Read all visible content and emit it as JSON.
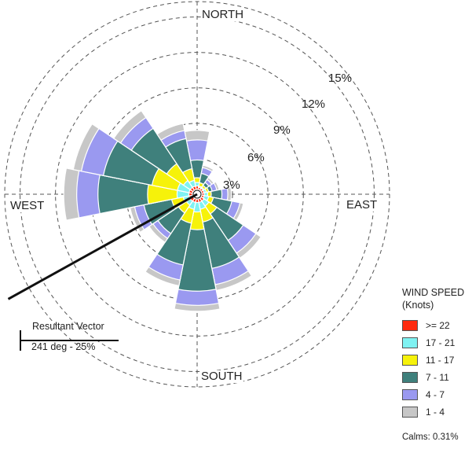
{
  "chart_data": {
    "type": "wind-rose",
    "directions": [
      "N",
      "NNE",
      "NE",
      "ENE",
      "E",
      "ESE",
      "SE",
      "SSE",
      "S",
      "SSW",
      "SW",
      "WSW",
      "W",
      "WNW",
      "NW",
      "NNW"
    ],
    "direction_labels": {
      "north": "NORTH",
      "east": "EAST",
      "south": "SOUTH",
      "west": "WEST"
    },
    "rings": [
      3,
      6,
      9,
      12,
      15
    ],
    "ring_labels": [
      "3%",
      "6%",
      "9%",
      "12%",
      "15%"
    ],
    "rmax": 16.3,
    "bins": [
      {
        "label": ">= 22",
        "color": "#ff2a0e"
      },
      {
        "label": "17 - 21",
        "color": "#7ff2f2"
      },
      {
        "label": "11 - 17",
        "color": "#f6f20a"
      },
      {
        "label": "7 - 11",
        "color": "#3f807c"
      },
      {
        "label": "4 - 7",
        "color": "#9a99f0"
      },
      {
        "label": "1 - 4",
        "color": "#c7c7c7"
      }
    ],
    "cumulative_percent": [
      [
        0.3,
        0.6,
        1.0,
        2.5,
        4.2,
        5.0
      ],
      [
        0.2,
        0.3,
        0.6,
        1.4,
        1.9,
        2.1
      ],
      [
        0.2,
        0.3,
        0.5,
        0.8,
        1.1,
        1.3
      ],
      [
        0.2,
        0.4,
        0.6,
        0.9,
        1.3,
        1.5
      ],
      [
        0.2,
        0.5,
        0.8,
        1.7,
        2.2,
        2.5
      ],
      [
        0.2,
        0.6,
        1.0,
        2.6,
        3.3,
        3.6
      ],
      [
        0.3,
        0.8,
        1.6,
        4.3,
        5.6,
        6.1
      ],
      [
        0.3,
        0.9,
        2.0,
        6.0,
        7.4,
        7.9
      ],
      [
        0.3,
        1.1,
        2.6,
        7.8,
        9.0,
        9.5
      ],
      [
        0.3,
        0.9,
        2.1,
        5.7,
        7.0,
        7.5
      ],
      [
        0.3,
        0.7,
        1.5,
        3.6,
        4.1,
        4.5
      ],
      [
        0.3,
        0.8,
        1.8,
        4.2,
        5.0,
        5.4
      ],
      [
        0.3,
        1.3,
        3.8,
        8.0,
        9.8,
        10.9
      ],
      [
        0.3,
        1.3,
        3.5,
        7.7,
        9.6,
        10.3
      ],
      [
        0.3,
        1.0,
        2.7,
        6.3,
        7.4,
        8.1
      ],
      [
        0.3,
        0.8,
        1.8,
        4.4,
        5.1,
        5.7
      ]
    ],
    "resultant_vector": {
      "direction_deg": 241,
      "percent": 25
    }
  },
  "legend": {
    "title_line1": "WIND SPEED",
    "title_line2": "(Knots)",
    "calms": "Calms: 0.31%"
  },
  "resultant": {
    "title": "Resultant Vector",
    "value": "241 deg - 25%"
  }
}
